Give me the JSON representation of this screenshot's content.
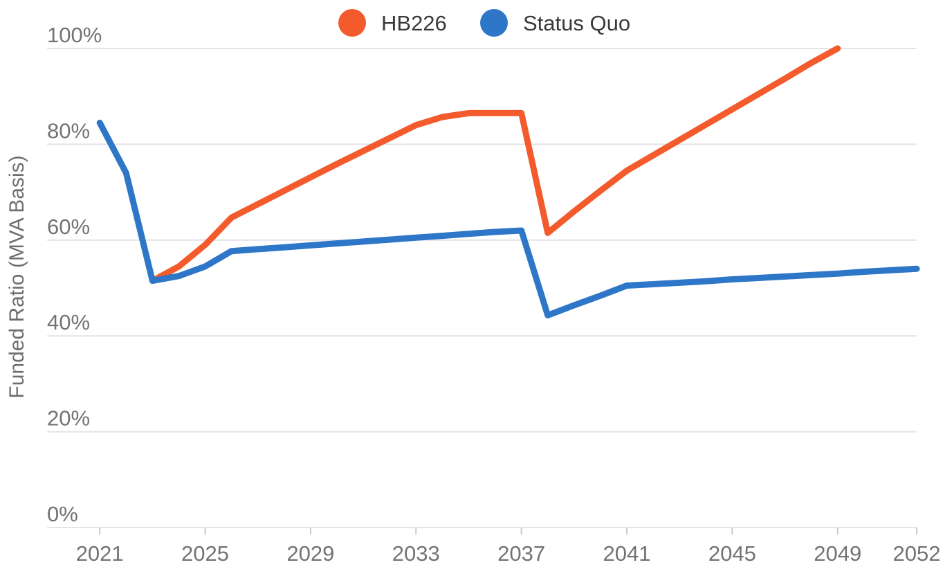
{
  "chart_data": {
    "type": "line",
    "title": "",
    "xlabel": "",
    "ylabel": "Funded Ratio (MVA Basis)",
    "xlim": [
      2019,
      2052
    ],
    "ylim": [
      0,
      100
    ],
    "grid": true,
    "legend_position": "top-center",
    "y_ticks": [
      {
        "value": 100,
        "label": "100%"
      },
      {
        "value": 80,
        "label": "80%"
      },
      {
        "value": 60,
        "label": "60%"
      },
      {
        "value": 40,
        "label": "40%"
      },
      {
        "value": 20,
        "label": "20%"
      },
      {
        "value": 0,
        "label": "0%"
      }
    ],
    "x_ticks": [
      {
        "value": 2021,
        "label": "2021"
      },
      {
        "value": 2025,
        "label": "2025"
      },
      {
        "value": 2029,
        "label": "2029"
      },
      {
        "value": 2033,
        "label": "2033"
      },
      {
        "value": 2037,
        "label": "2037"
      },
      {
        "value": 2041,
        "label": "2041"
      },
      {
        "value": 2045,
        "label": "2045"
      },
      {
        "value": 2049,
        "label": "2049"
      },
      {
        "value": 2052,
        "label": "2052"
      }
    ],
    "palette": {
      "grid_color": "#e3e3e8",
      "axis_line_color": "#e3e3e8",
      "tick_mark_color": "#c9c9ce",
      "tick_text_color": "#737373",
      "axis_title_color": "#6e6e6e",
      "legend_text_color": "#3a3a3a",
      "background": "#ffffff"
    },
    "series": [
      {
        "name": "HB226",
        "color": "#f35b2d",
        "years": [
          2023,
          2024,
          2025,
          2026,
          2027,
          2028,
          2029,
          2030,
          2031,
          2032,
          2033,
          2034,
          2035,
          2036,
          2037,
          2038,
          2039,
          2040,
          2041,
          2042,
          2043,
          2044,
          2045,
          2046,
          2047,
          2048,
          2049
        ],
        "values": [
          51.5,
          54.5,
          59.0,
          64.7,
          67.5,
          70.3,
          73.1,
          75.9,
          78.6,
          81.3,
          84.0,
          85.7,
          86.5,
          86.5,
          86.5,
          61.5,
          66.0,
          70.3,
          74.5,
          77.7,
          80.9,
          84.1,
          87.3,
          90.5,
          93.7,
          97.0,
          100.0
        ]
      },
      {
        "name": "Status Quo",
        "color": "#2d76c8",
        "years": [
          2021,
          2022,
          2023,
          2024,
          2025,
          2026,
          2027,
          2028,
          2029,
          2030,
          2031,
          2032,
          2033,
          2034,
          2035,
          2036,
          2037,
          2038,
          2039,
          2040,
          2041,
          2042,
          2043,
          2044,
          2045,
          2046,
          2047,
          2048,
          2049,
          2050,
          2051,
          2052
        ],
        "values": [
          84.5,
          74.0,
          51.5,
          52.5,
          54.5,
          57.7,
          58.1,
          58.5,
          58.9,
          59.3,
          59.7,
          60.1,
          60.5,
          60.9,
          61.3,
          61.7,
          62.0,
          44.3,
          46.4,
          48.4,
          50.5,
          50.8,
          51.1,
          51.4,
          51.8,
          52.1,
          52.4,
          52.7,
          53.0,
          53.4,
          53.7,
          54.0
        ]
      }
    ]
  }
}
